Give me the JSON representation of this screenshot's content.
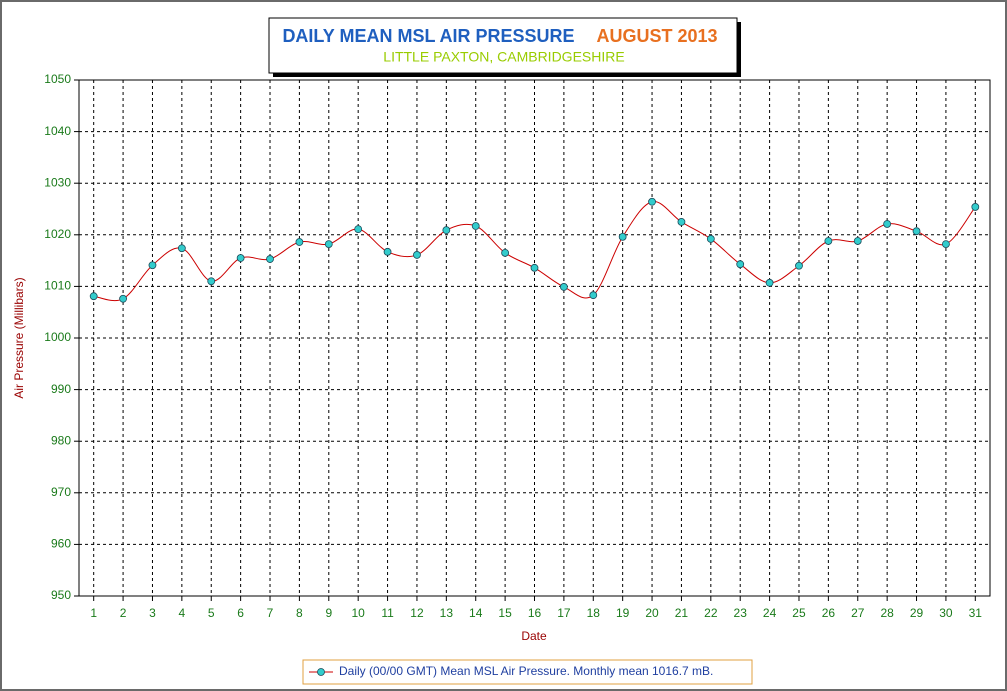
{
  "chart_data": {
    "type": "line",
    "title": "DAILY MEAN MSL AIR PRESSURE",
    "title_period": "AUGUST 2013",
    "subtitle": "LITTLE PAXTON, CAMBRIDGESHIRE",
    "x_label": "Date",
    "y_label": "Air Pressure (Millibars)",
    "categories": [
      "1",
      "2",
      "3",
      "4",
      "5",
      "6",
      "7",
      "8",
      "9",
      "10",
      "11",
      "12",
      "13",
      "14",
      "15",
      "16",
      "17",
      "18",
      "19",
      "20",
      "21",
      "22",
      "23",
      "24",
      "25",
      "26",
      "27",
      "28",
      "29",
      "30",
      "31"
    ],
    "series": [
      {
        "name": "Daily (00/00 GMT) Mean MSL Air Pressure. Monthly mean 1016.7 mB.",
        "color": "#cc0000",
        "marker_color": "#33cccc",
        "values": [
          1008.1,
          1007.6,
          1014.1,
          1017.4,
          1011.0,
          1015.5,
          1015.3,
          1018.6,
          1018.2,
          1021.1,
          1016.7,
          1016.1,
          1020.9,
          1021.7,
          1016.5,
          1013.6,
          1009.9,
          1008.3,
          1019.6,
          1026.4,
          1022.5,
          1019.2,
          1014.3,
          1010.7,
          1014.0,
          1018.8,
          1018.8,
          1022.1,
          1020.7,
          1018.2,
          1025.4
        ]
      }
    ],
    "ylim": [
      950,
      1050
    ],
    "yticks": [
      950,
      960,
      970,
      980,
      990,
      1000,
      1010,
      1020,
      1030,
      1040,
      1050
    ],
    "grid": true,
    "legend": "bottom"
  }
}
